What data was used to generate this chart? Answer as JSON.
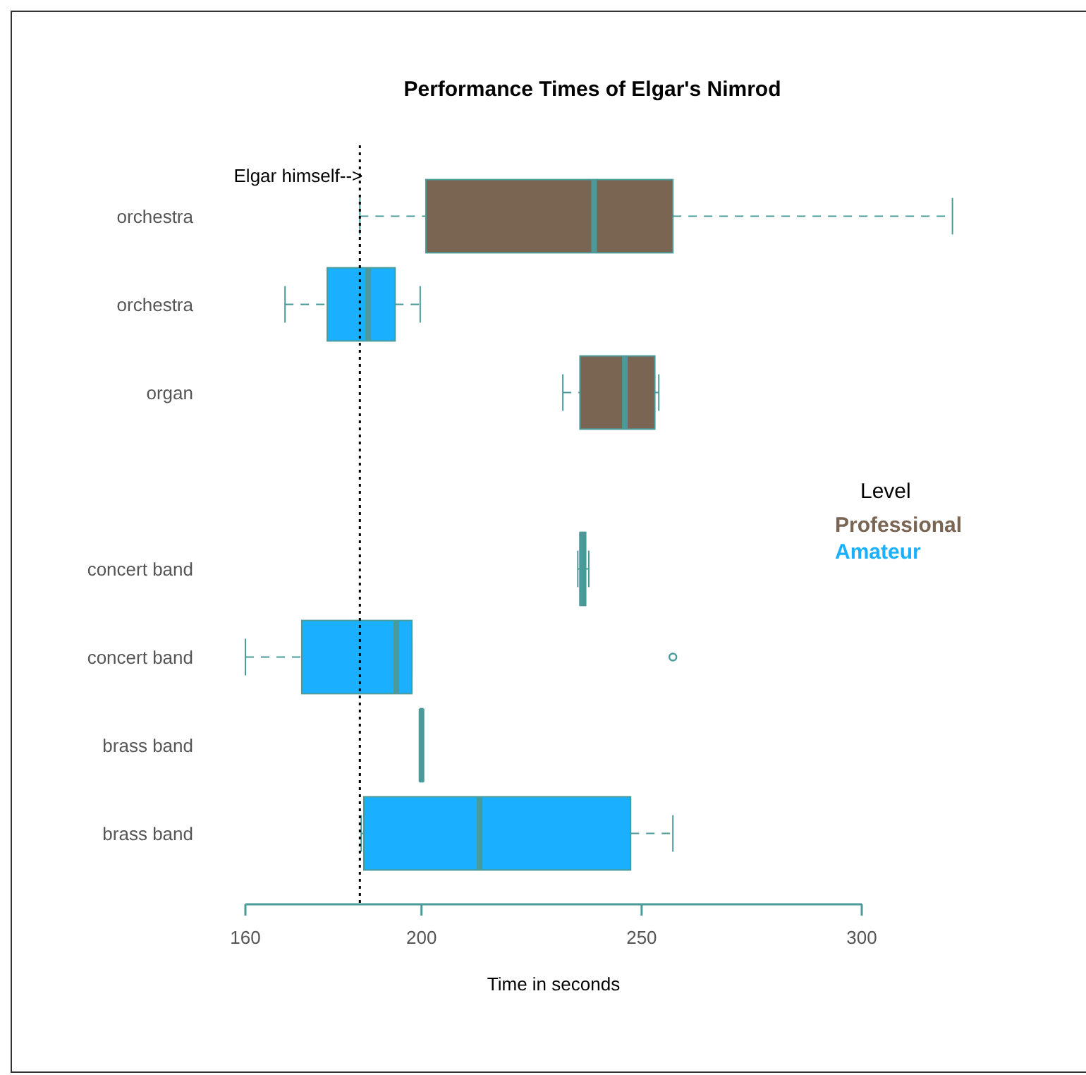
{
  "chart_data": {
    "type": "box",
    "orientation": "horizontal",
    "title": "Performance Times of Elgar's Nimrod",
    "xlabel": "Time in seconds",
    "legend_title": "Level",
    "legend": "right",
    "grid": false,
    "categories": [
      "orchestra",
      "orchestra",
      "organ",
      null,
      "concert band",
      "concert band",
      "brass band",
      "brass band"
    ],
    "xlim": [
      160,
      300
    ],
    "xticks": [
      160,
      200,
      250,
      300
    ],
    "ref_lines": [
      {
        "axis": "x",
        "value": 186,
        "label": "Elgar himself-->",
        "line_style": "dotted",
        "color": "#000000"
      }
    ],
    "series": [
      {
        "name": "Professional",
        "color": "#7a6552",
        "boxes": [
          {
            "low": 186,
            "q1": 201,
            "median": 239.2,
            "q3": 257.1,
            "high": 320.6
          },
          null,
          {
            "low": 232.1,
            "q1": 236,
            "median": 246.2,
            "q3": 253,
            "high": 253.9
          },
          null,
          {
            "low": 235.5,
            "q1": 236,
            "median": 236.5,
            "q3": 237.3,
            "high": 238
          },
          null,
          {
            "low": 199.7,
            "q1": 199.7,
            "median": 200,
            "q3": 200.3,
            "high": 200.3
          },
          null
        ]
      },
      {
        "name": "Amateur",
        "color": "#1ab0ff",
        "boxes": [
          null,
          {
            "low": 169,
            "q1": 178.6,
            "median": 187.9,
            "q3": 194,
            "high": 199.7
          },
          null,
          null,
          null,
          {
            "low": 160,
            "q1": 172.8,
            "median": 194.3,
            "q3": 197.8,
            "high": 197.8,
            "outliers": [
              257.1
            ]
          },
          null,
          {
            "low": 186.3,
            "q1": 186.9,
            "median": 213.2,
            "q3": 247.5,
            "high": 257.1
          }
        ]
      }
    ]
  }
}
